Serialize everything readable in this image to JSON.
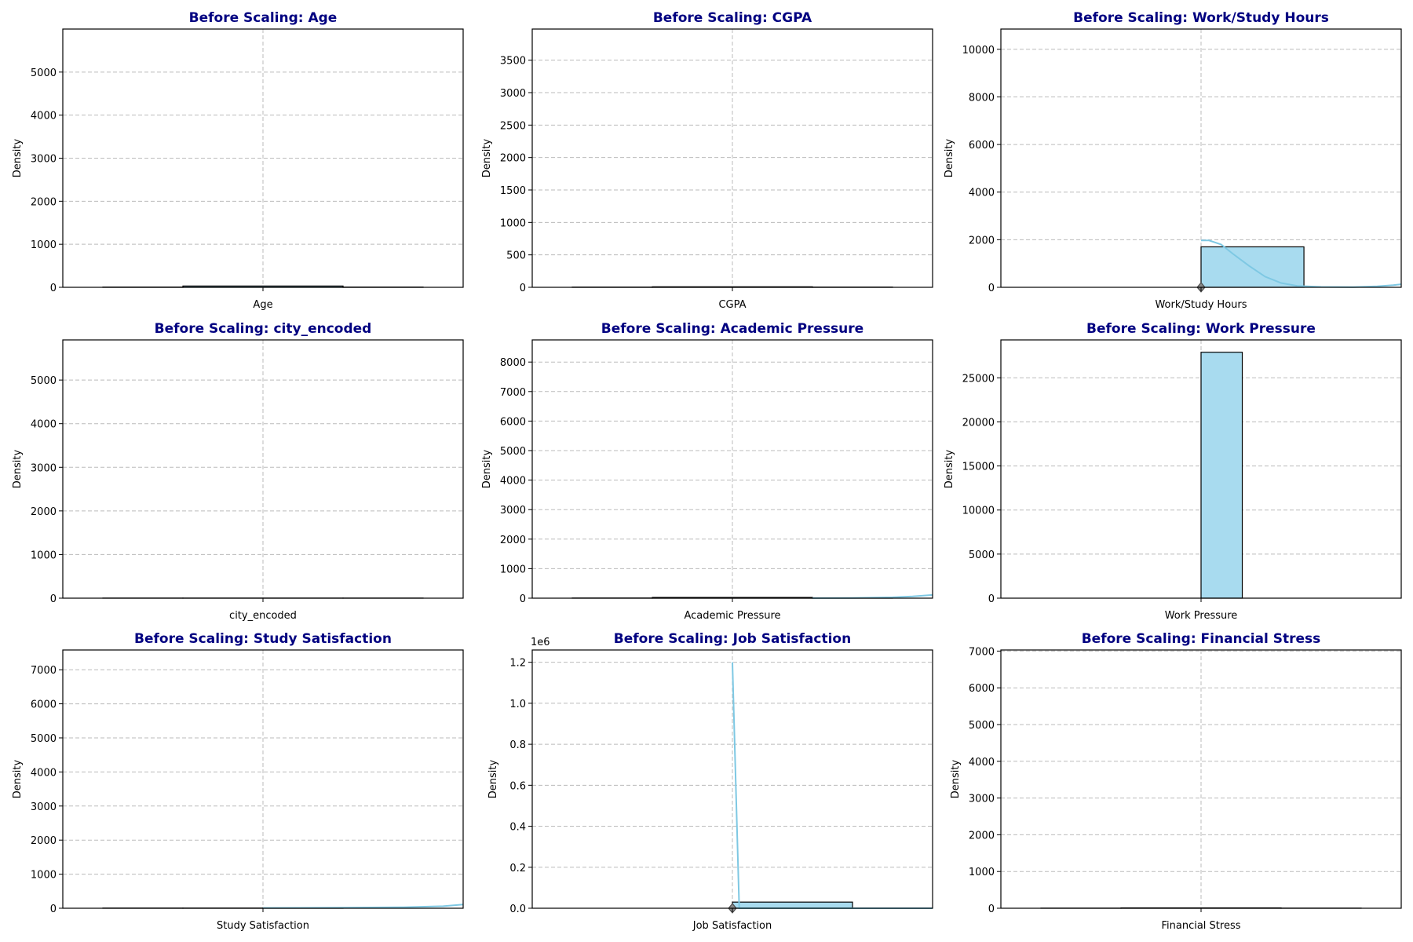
{
  "chart_data": [
    {
      "type": "histogram",
      "title": "Before Scaling: Age",
      "xlabel": "Age",
      "ylabel": "Density",
      "ylim": [
        0,
        6000
      ],
      "yticks": [
        0,
        1000,
        2000,
        3000,
        4000,
        5000
      ],
      "y_offset_label": "",
      "grid": true,
      "bars": [
        {
          "x": [
            0.1,
            0.3
          ],
          "value": 5
        },
        {
          "x": [
            0.3,
            0.7
          ],
          "value": 30
        },
        {
          "x": [
            0.7,
            0.9
          ],
          "value": 5
        }
      ],
      "kde": [],
      "mean_marker": null
    },
    {
      "type": "histogram",
      "title": "Before Scaling: CGPA",
      "xlabel": "CGPA",
      "ylabel": "Density",
      "ylim": [
        0,
        3980
      ],
      "yticks": [
        0,
        500,
        1000,
        1500,
        2000,
        2500,
        3000,
        3500
      ],
      "y_offset_label": "",
      "grid": true,
      "bars": [
        {
          "x": [
            0.1,
            0.3
          ],
          "value": 3
        },
        {
          "x": [
            0.3,
            0.7
          ],
          "value": 8
        },
        {
          "x": [
            0.7,
            0.9
          ],
          "value": 3
        }
      ],
      "kde": [],
      "mean_marker": null
    },
    {
      "type": "histogram",
      "title": "Before Scaling: Work/Study Hours",
      "xlabel": "Work/Study Hours",
      "ylabel": "Density",
      "ylim": [
        0,
        10850
      ],
      "yticks": [
        0,
        2000,
        4000,
        6000,
        8000,
        10000
      ],
      "y_offset_label": "",
      "grid": true,
      "bars": [
        {
          "x": [
            0.1,
            0.3
          ],
          "value": 0
        },
        {
          "x": [
            0.3,
            0.5
          ],
          "value": 0
        },
        {
          "x": [
            0.5,
            0.757
          ],
          "value": 1700
        }
      ],
      "kde": [
        [
          0.5,
          1970
        ],
        [
          0.52,
          1970
        ],
        [
          0.55,
          1800
        ],
        [
          0.58,
          1400
        ],
        [
          0.62,
          900
        ],
        [
          0.66,
          450
        ],
        [
          0.7,
          180
        ],
        [
          0.74,
          60
        ],
        [
          0.8,
          15
        ],
        [
          0.88,
          5
        ],
        [
          0.94,
          40
        ],
        [
          0.98,
          90
        ],
        [
          1.0,
          130
        ]
      ],
      "mean_marker": 0.5
    },
    {
      "type": "histogram",
      "title": "Before Scaling: city_encoded",
      "xlabel": "city_encoded",
      "ylabel": "Density",
      "ylim": [
        0,
        5920
      ],
      "yticks": [
        0,
        1000,
        2000,
        3000,
        4000,
        5000
      ],
      "y_offset_label": "",
      "grid": true,
      "bars": [
        {
          "x": [
            0.1,
            0.3
          ],
          "value": 2
        },
        {
          "x": [
            0.3,
            0.7
          ],
          "value": 2
        },
        {
          "x": [
            0.7,
            0.9
          ],
          "value": 2
        }
      ],
      "kde": [],
      "mean_marker": null
    },
    {
      "type": "histogram",
      "title": "Before Scaling: Academic Pressure",
      "xlabel": "Academic Pressure",
      "ylabel": "Density",
      "ylim": [
        0,
        8750
      ],
      "yticks": [
        0,
        1000,
        2000,
        3000,
        4000,
        5000,
        6000,
        7000,
        8000
      ],
      "y_offset_label": "",
      "grid": true,
      "bars": [
        {
          "x": [
            0.1,
            0.3
          ],
          "value": 5
        },
        {
          "x": [
            0.3,
            0.7
          ],
          "value": 25
        },
        {
          "x": [
            0.7,
            0.9
          ],
          "value": 5
        }
      ],
      "kde": [
        [
          0.7,
          2
        ],
        [
          0.8,
          8
        ],
        [
          0.9,
          30
        ],
        [
          0.95,
          60
        ],
        [
          1.0,
          110
        ]
      ],
      "mean_marker": null
    },
    {
      "type": "histogram",
      "title": "Before Scaling: Work Pressure",
      "xlabel": "Work Pressure",
      "ylabel": "Density",
      "ylim": [
        0,
        29300
      ],
      "yticks": [
        0,
        5000,
        10000,
        15000,
        20000,
        25000
      ],
      "y_offset_label": "",
      "grid": true,
      "bars": [
        {
          "x": [
            0.5,
            0.603
          ],
          "value": 27900
        }
      ],
      "kde": [],
      "mean_marker": null
    },
    {
      "type": "histogram",
      "title": "Before Scaling: Study Satisfaction",
      "xlabel": "Study Satisfaction",
      "ylabel": "Density",
      "ylim": [
        0,
        7580
      ],
      "yticks": [
        0,
        1000,
        2000,
        3000,
        4000,
        5000,
        6000,
        7000
      ],
      "y_offset_label": "",
      "grid": true,
      "bars": [
        {
          "x": [
            0.1,
            0.3
          ],
          "value": 5
        },
        {
          "x": [
            0.3,
            0.5
          ],
          "value": 5
        },
        {
          "x": [
            0.5,
            0.7
          ],
          "value": 10
        }
      ],
      "kde": [
        [
          0.5,
          10
        ],
        [
          0.7,
          15
        ],
        [
          0.85,
          30
        ],
        [
          0.95,
          60
        ],
        [
          1.0,
          110
        ]
      ],
      "mean_marker": null
    },
    {
      "type": "histogram",
      "title": "Before Scaling: Job Satisfaction",
      "xlabel": "Job Satisfaction",
      "ylabel": "Density",
      "ylim": [
        0,
        1.26
      ],
      "yticks": [
        0.0,
        0.2,
        0.4,
        0.6,
        0.8,
        1.0,
        1.2
      ],
      "y_offset_label": "1e6",
      "grid": true,
      "bars": [
        {
          "x": [
            0.5,
            0.8
          ],
          "value": 0.03
        }
      ],
      "kde": [
        [
          0.5,
          1.2
        ],
        [
          0.517,
          0.0
        ],
        [
          1.0,
          0.0
        ]
      ],
      "mean_marker": 0.5
    },
    {
      "type": "histogram",
      "title": "Before Scaling: Financial Stress",
      "xlabel": "Financial Stress",
      "ylabel": "Density",
      "ylim": [
        0,
        7030
      ],
      "yticks": [
        0,
        1000,
        2000,
        3000,
        4000,
        5000,
        6000,
        7000
      ],
      "y_offset_label": "",
      "grid": true,
      "bars": [
        {
          "x": [
            0.1,
            0.3
          ],
          "value": 3
        },
        {
          "x": [
            0.3,
            0.7
          ],
          "value": 10
        },
        {
          "x": [
            0.7,
            0.9
          ],
          "value": 3
        }
      ],
      "kde": [],
      "mean_marker": null
    }
  ],
  "colors": {
    "title": "#000080",
    "bar_fill": "#a8dbef",
    "bar_edge": "#000000",
    "kde_line": "#7ec8e3",
    "grid": "#bbbbbb",
    "mean_marker": "#888888"
  }
}
